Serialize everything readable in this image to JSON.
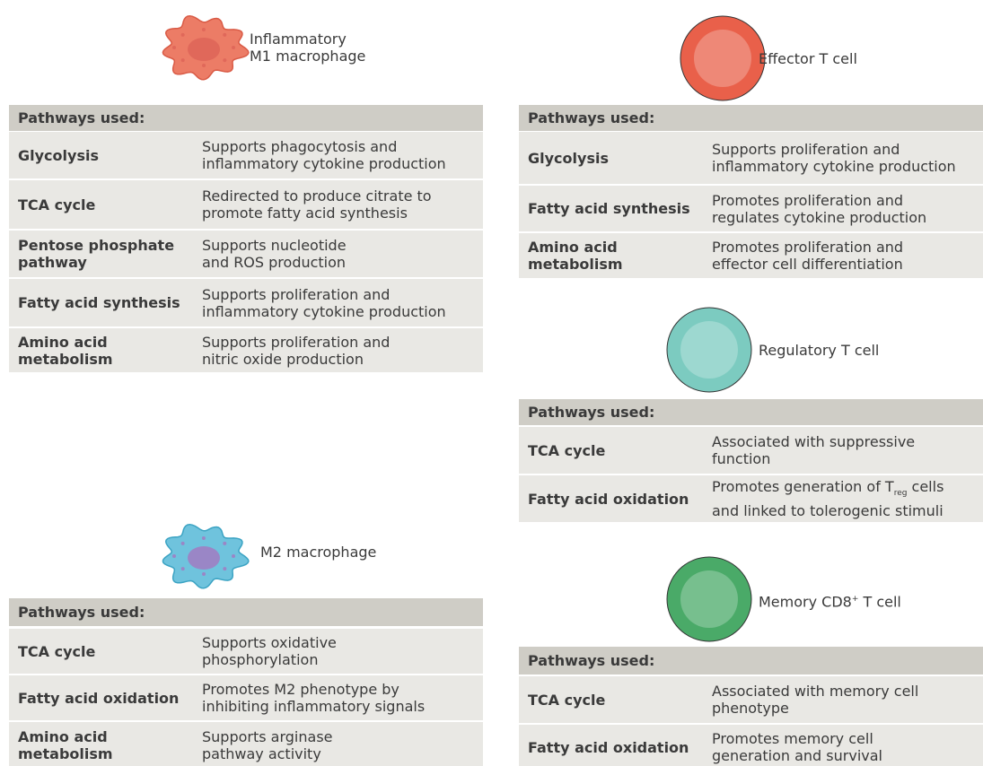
{
  "panels": [
    {
      "cell": [
        "Inflammatory",
        "M1 macrophage"
      ],
      "header": "Pathways used:",
      "rows": [
        {
          "pathway": [
            "Glycolysis"
          ],
          "role": [
            "Supports phagocytosis and",
            "inflammatory cytokine production"
          ]
        },
        {
          "pathway": [
            "TCA cycle"
          ],
          "role": [
            "Redirected to produce citrate to",
            "promote fatty acid synthesis"
          ]
        },
        {
          "pathway": [
            "Pentose phosphate",
            "pathway"
          ],
          "role": [
            "Supports nucleotide",
            "and ROS production"
          ]
        },
        {
          "pathway": [
            "Fatty acid synthesis"
          ],
          "role": [
            "Supports proliferation and",
            "inflammatory cytokine production"
          ]
        },
        {
          "pathway": [
            "Amino acid",
            "metabolism"
          ],
          "role": [
            "Supports proliferation and",
            "nitric oxide production"
          ]
        }
      ]
    },
    {
      "cell": [
        "M2 macrophage"
      ],
      "header": "Pathways used:",
      "rows": [
        {
          "pathway": [
            "TCA cycle"
          ],
          "role": [
            "Supports oxidative",
            "phosphorylation"
          ]
        },
        {
          "pathway": [
            "Fatty acid oxidation"
          ],
          "role": [
            "Promotes M2 phenotype by",
            "inhibiting inflammatory signals"
          ]
        },
        {
          "pathway": [
            "Amino acid",
            "metabolism"
          ],
          "role": [
            "Supports arginase",
            "pathway activity"
          ]
        }
      ]
    },
    {
      "cell": [
        "Effector T cell"
      ],
      "header": "Pathways used:",
      "rows": [
        {
          "pathway": [
            "Glycolysis"
          ],
          "role": [
            "Supports proliferation and",
            "inflammatory cytokine production"
          ]
        },
        {
          "pathway": [
            "Fatty acid synthesis"
          ],
          "role": [
            "Promotes proliferation and",
            "regulates cytokine production"
          ]
        },
        {
          "pathway": [
            "Amino acid",
            "metabolism"
          ],
          "role": [
            "Promotes proliferation and",
            "effector cell differentiation"
          ]
        }
      ]
    },
    {
      "cell": [
        "Regulatory T cell"
      ],
      "header": "Pathways used:",
      "rows": [
        {
          "pathway": [
            "TCA cycle"
          ],
          "role": [
            "Associated with suppressive",
            "function"
          ]
        },
        {
          "pathway": [
            "Fatty acid oxidation"
          ],
          "role": [
            [
              "Promotes generation of T",
              {
                "sub": "reg"
              },
              " cells"
            ],
            "and linked to tolerogenic stimuli"
          ]
        }
      ]
    },
    {
      "cell": [
        [
          "Memory CD8",
          {
            "sup": "+"
          },
          " T cell"
        ]
      ],
      "header": "Pathways used:",
      "rows": [
        {
          "pathway": [
            "TCA cycle"
          ],
          "role": [
            "Associated with memory cell",
            "phenotype"
          ]
        },
        {
          "pathway": [
            "Fatty acid oxidation"
          ],
          "role": [
            "Promotes memory cell",
            "generation and survival"
          ]
        }
      ]
    }
  ]
}
